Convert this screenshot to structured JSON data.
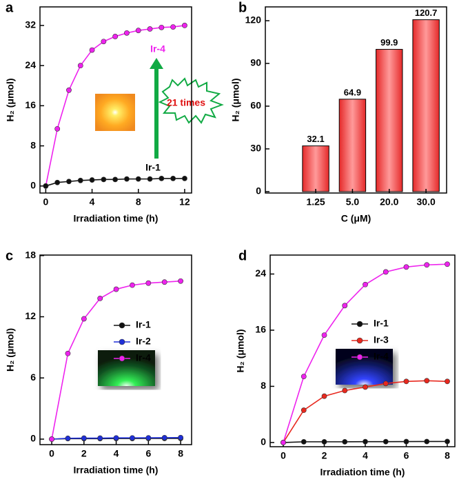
{
  "chart_data": [
    {
      "type": "line",
      "label": "a",
      "xlabel": "Irradiation time (h)",
      "ylabel": "H₂ (μmol)",
      "x": [
        0,
        1,
        2,
        3,
        4,
        5,
        6,
        7,
        8,
        9,
        10,
        11,
        12
      ],
      "xlim": [
        -0.5,
        12.6
      ],
      "xticks": [
        0,
        4,
        8,
        12
      ],
      "ylim": [
        -1.4,
        35.7
      ],
      "yticks": [
        0,
        8,
        16,
        24,
        32
      ],
      "legend": false,
      "annotations": [
        "21 times"
      ],
      "series": [
        {
          "name": "Ir-4",
          "color": "#ee22ee",
          "values": [
            0,
            11.4,
            19.1,
            24.0,
            27.1,
            28.8,
            29.8,
            30.5,
            31.0,
            31.3,
            31.6,
            31.7,
            32.0
          ]
        },
        {
          "name": "Ir-1",
          "color": "#111111",
          "values": [
            0,
            0.7,
            0.9,
            1.1,
            1.2,
            1.3,
            1.3,
            1.4,
            1.4,
            1.4,
            1.5,
            1.5,
            1.5
          ]
        }
      ]
    },
    {
      "type": "bar",
      "label": "b",
      "xlabel": "C (μM)",
      "ylabel": "H₂ (μmol)",
      "categories": [
        "1.25",
        "5.0",
        "20.0",
        "30.0"
      ],
      "values": [
        32.1,
        64.9,
        99.9,
        120.7
      ],
      "color": "#ee3333",
      "ylim": [
        -1,
        129.7
      ],
      "yticks": [
        0,
        30,
        60,
        90,
        120
      ]
    },
    {
      "type": "line",
      "label": "c",
      "xlabel": "Irradiation time (h)",
      "ylabel": "H₂ (μmol)",
      "x": [
        0,
        1,
        2,
        3,
        4,
        5,
        6,
        7,
        8
      ],
      "xlim": [
        -0.73,
        8.68
      ],
      "xticks": [
        0,
        2,
        4,
        6,
        8
      ],
      "ylim": [
        -0.54,
        18.05
      ],
      "yticks": [
        0,
        6,
        12,
        18
      ],
      "legend": "right",
      "series": [
        {
          "name": "Ir-1",
          "color": "#111111",
          "values": [
            0,
            0.05,
            0.05,
            0.05,
            0.06,
            0.06,
            0.07,
            0.07,
            0.07
          ]
        },
        {
          "name": "Ir-2",
          "color": "#1f2fd8",
          "values": [
            0,
            0.08,
            0.1,
            0.1,
            0.12,
            0.12,
            0.13,
            0.14,
            0.15
          ]
        },
        {
          "name": "Ir-4",
          "color": "#ee22ee",
          "values": [
            0,
            8.4,
            11.8,
            13.8,
            14.7,
            15.1,
            15.3,
            15.4,
            15.5
          ]
        }
      ]
    },
    {
      "type": "line",
      "label": "d",
      "xlabel": "Irradiation time (h)",
      "ylabel": "H₂ (μmol)",
      "x": [
        0,
        1,
        2,
        3,
        4,
        5,
        6,
        7,
        8
      ],
      "xlim": [
        -0.64,
        8.37
      ],
      "xticks": [
        0,
        2,
        4,
        6,
        8
      ],
      "ylim": [
        -0.6,
        26.7
      ],
      "yticks": [
        0,
        8,
        16,
        24
      ],
      "legend": "right",
      "series": [
        {
          "name": "Ir-1",
          "color": "#111111",
          "values": [
            0,
            0.1,
            0.1,
            0.1,
            0.12,
            0.12,
            0.13,
            0.14,
            0.15
          ]
        },
        {
          "name": "Ir-3",
          "color": "#e8281e",
          "values": [
            0,
            4.6,
            6.6,
            7.4,
            7.9,
            8.4,
            8.7,
            8.8,
            8.7
          ]
        },
        {
          "name": "Ir-4",
          "color": "#ee22ee",
          "values": [
            0,
            9.4,
            15.3,
            19.5,
            22.5,
            24.3,
            25.0,
            25.3,
            25.4
          ]
        }
      ]
    }
  ]
}
